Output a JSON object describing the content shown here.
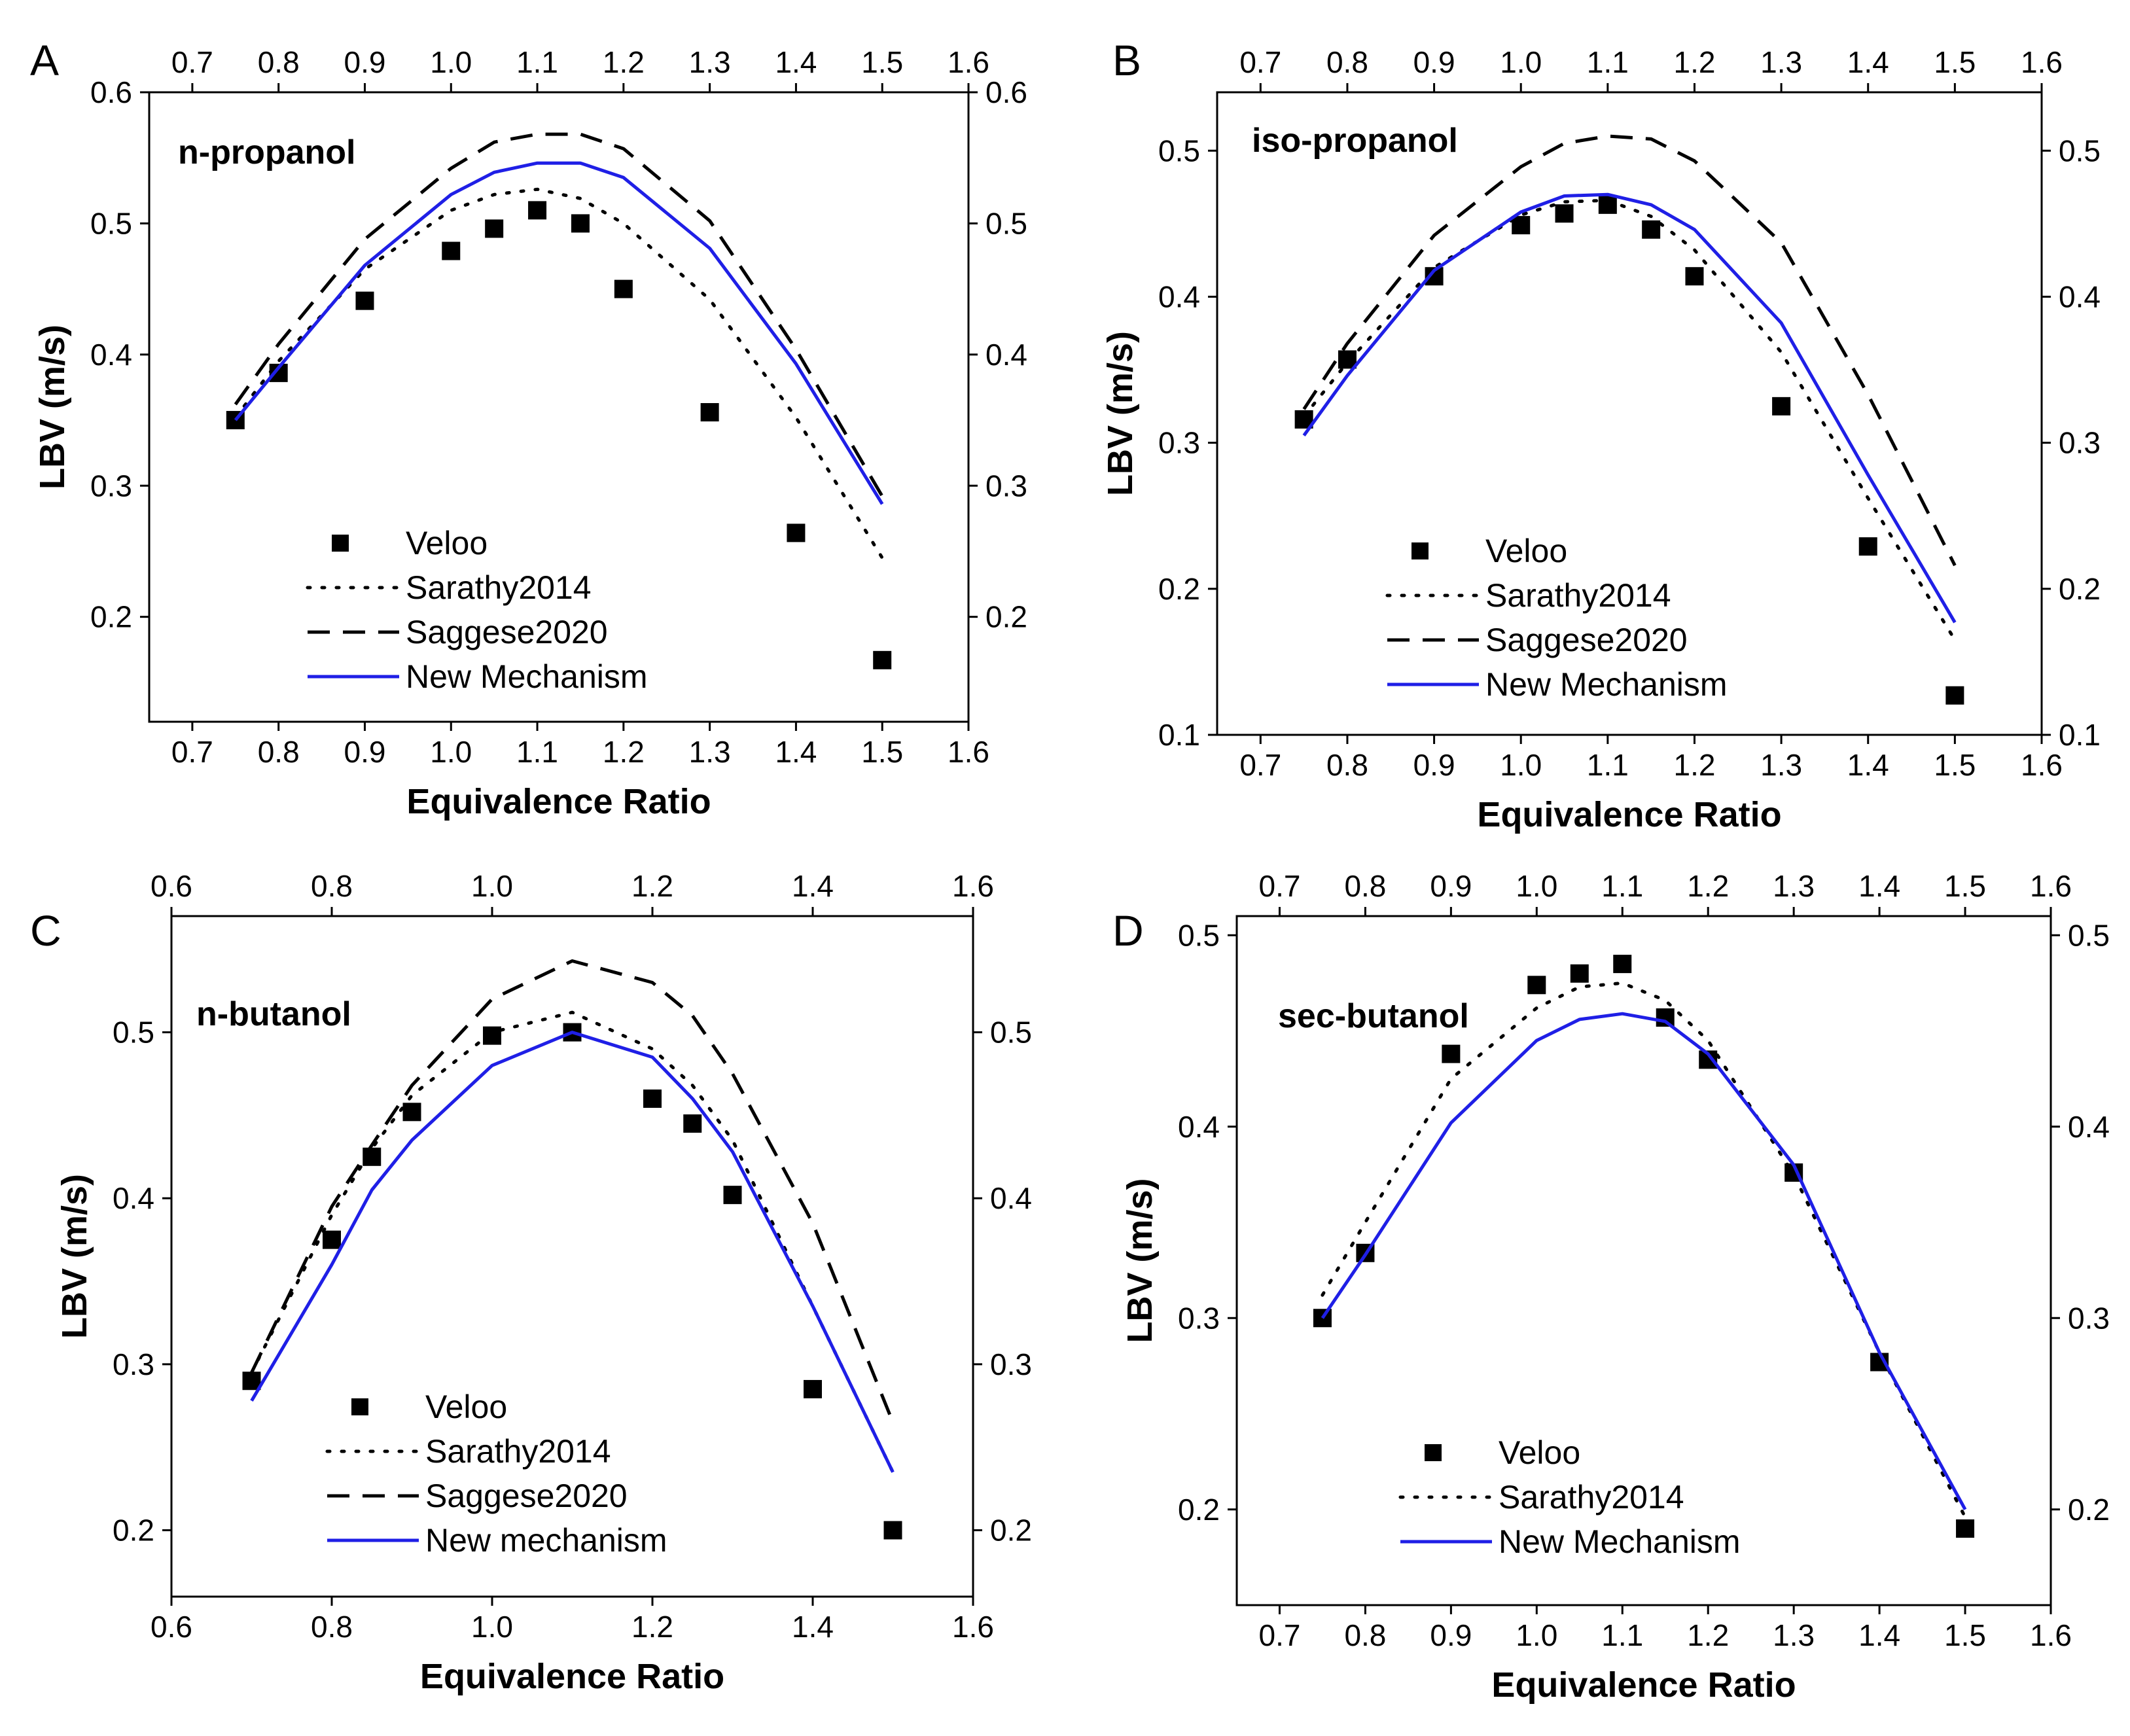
{
  "figure": {
    "colors": {
      "new_mechanism": "#1f1fe6",
      "reference": "#000000",
      "background": "#ffffff"
    },
    "panels": [
      {
        "id": "A",
        "panel_label": "A",
        "fuel": "n-propanol"
      },
      {
        "id": "B",
        "panel_label": "B",
        "fuel": "iso-propanol"
      },
      {
        "id": "C",
        "panel_label": "C",
        "fuel": "n-butanol"
      },
      {
        "id": "D",
        "panel_label": "D",
        "fuel": "sec-butanol"
      }
    ]
  },
  "chart_data": [
    {
      "type": "line",
      "panel": "A",
      "title": "n-propanol",
      "xlabel": "Equivalence Ratio",
      "ylabel": "LBV (m/s)",
      "xlim": [
        0.65,
        1.6
      ],
      "ylim": [
        0.12,
        0.6
      ],
      "x_ticks": [
        0.7,
        0.8,
        0.9,
        1.0,
        1.1,
        1.2,
        1.3,
        1.4,
        1.5,
        1.6
      ],
      "x_tick_labels": [
        "0.7",
        "0.8",
        "0.9",
        "1.0",
        "1.1",
        "1.2",
        "1.3",
        "1.4",
        "1.5",
        "1.6"
      ],
      "y_ticks": [
        0.2,
        0.3,
        0.4,
        0.5,
        0.6
      ],
      "y_tick_labels": [
        "0.2",
        "0.3",
        "0.4",
        "0.5",
        "0.6"
      ],
      "legend_position": "bottom-left",
      "series": [
        {
          "name": "Veloo",
          "style": "markers",
          "x": [
            0.75,
            0.8,
            0.9,
            1.0,
            1.05,
            1.1,
            1.15,
            1.2,
            1.3,
            1.4,
            1.5
          ],
          "y": [
            0.35,
            0.386,
            0.441,
            0.479,
            0.496,
            0.51,
            0.5,
            0.45,
            0.356,
            0.264,
            0.167
          ]
        },
        {
          "name": "Sarathy2014",
          "style": "dotted",
          "x": [
            0.75,
            0.8,
            0.9,
            1.0,
            1.05,
            1.1,
            1.15,
            1.2,
            1.3,
            1.4,
            1.5
          ],
          "y": [
            0.352,
            0.395,
            0.465,
            0.51,
            0.522,
            0.526,
            0.519,
            0.5,
            0.442,
            0.352,
            0.245
          ]
        },
        {
          "name": "Saggese2020",
          "style": "dashed",
          "x": [
            0.75,
            0.8,
            0.9,
            1.0,
            1.05,
            1.1,
            1.15,
            1.2,
            1.3,
            1.4,
            1.5
          ],
          "y": [
            0.362,
            0.408,
            0.488,
            0.542,
            0.562,
            0.568,
            0.568,
            0.557,
            0.502,
            0.404,
            0.292
          ]
        },
        {
          "name": "New Mechanism",
          "style": "solid",
          "x": [
            0.75,
            0.8,
            0.9,
            1.0,
            1.05,
            1.1,
            1.15,
            1.2,
            1.3,
            1.4,
            1.5
          ],
          "y": [
            0.35,
            0.39,
            0.468,
            0.522,
            0.539,
            0.546,
            0.546,
            0.535,
            0.481,
            0.393,
            0.286
          ]
        }
      ]
    },
    {
      "type": "line",
      "panel": "B",
      "title": "iso-propanol",
      "xlabel": "Equivalence Ratio",
      "ylabel": "LBV (m/s)",
      "xlim": [
        0.65,
        1.6
      ],
      "ylim": [
        0.1,
        0.54
      ],
      "x_ticks": [
        0.7,
        0.8,
        0.9,
        1.0,
        1.1,
        1.2,
        1.3,
        1.4,
        1.5,
        1.6
      ],
      "x_tick_labels": [
        "0.7",
        "0.8",
        "0.9",
        "1.0",
        "1.1",
        "1.2",
        "1.3",
        "1.4",
        "1.5",
        "1.6"
      ],
      "y_ticks": [
        0.1,
        0.2,
        0.3,
        0.4,
        0.5
      ],
      "y_tick_labels": [
        "0.1",
        "0.2",
        "0.3",
        "0.4",
        "0.5"
      ],
      "legend_position": "bottom-left",
      "series": [
        {
          "name": "Veloo",
          "style": "markers",
          "x": [
            0.75,
            0.8,
            0.9,
            1.0,
            1.05,
            1.1,
            1.15,
            1.2,
            1.3,
            1.4,
            1.5
          ],
          "y": [
            0.316,
            0.357,
            0.414,
            0.449,
            0.457,
            0.463,
            0.446,
            0.414,
            0.325,
            0.229,
            0.127
          ]
        },
        {
          "name": "Sarathy2014",
          "style": "dotted",
          "x": [
            0.75,
            0.8,
            0.9,
            1.0,
            1.05,
            1.1,
            1.15,
            1.2,
            1.3,
            1.4,
            1.5
          ],
          "y": [
            0.318,
            0.355,
            0.42,
            0.456,
            0.465,
            0.466,
            0.455,
            0.432,
            0.362,
            0.262,
            0.165
          ]
        },
        {
          "name": "Saggese2020",
          "style": "dashed",
          "x": [
            0.75,
            0.8,
            0.9,
            1.0,
            1.05,
            1.1,
            1.15,
            1.2,
            1.3,
            1.4,
            1.5
          ],
          "y": [
            0.323,
            0.368,
            0.442,
            0.489,
            0.505,
            0.51,
            0.508,
            0.493,
            0.437,
            0.333,
            0.216
          ]
        },
        {
          "name": "New Mechanism",
          "style": "solid",
          "x": [
            0.75,
            0.8,
            0.9,
            1.0,
            1.05,
            1.1,
            1.15,
            1.2,
            1.3,
            1.4,
            1.5
          ],
          "y": [
            0.305,
            0.346,
            0.418,
            0.458,
            0.469,
            0.47,
            0.463,
            0.446,
            0.382,
            0.278,
            0.177
          ]
        }
      ]
    },
    {
      "type": "line",
      "panel": "C",
      "title": "n-butanol",
      "xlabel": "Equivalence Ratio",
      "ylabel": "LBV (m/s)",
      "xlim": [
        0.6,
        1.6
      ],
      "ylim": [
        0.16,
        0.57
      ],
      "x_ticks": [
        0.6,
        0.8,
        1.0,
        1.2,
        1.4,
        1.6
      ],
      "x_tick_labels": [
        "0.6",
        "0.8",
        "1.0",
        "1.2",
        "1.4",
        "1.6"
      ],
      "y_ticks": [
        0.2,
        0.3,
        0.4,
        0.5
      ],
      "y_tick_labels": [
        "0.2",
        "0.3",
        "0.4",
        "0.5"
      ],
      "legend_position": "bottom-left",
      "series": [
        {
          "name": "Veloo",
          "style": "markers",
          "x": [
            0.7,
            0.8,
            0.85,
            0.9,
            1.0,
            1.1,
            1.2,
            1.25,
            1.3,
            1.4,
            1.5
          ],
          "y": [
            0.29,
            0.375,
            0.425,
            0.452,
            0.498,
            0.5,
            0.46,
            0.445,
            0.402,
            0.285,
            0.2
          ]
        },
        {
          "name": "Sarathy2014",
          "style": "dotted",
          "x": [
            0.7,
            0.8,
            0.85,
            0.9,
            1.0,
            1.1,
            1.2,
            1.25,
            1.3,
            1.4,
            1.5
          ],
          "y": [
            0.295,
            0.39,
            0.43,
            0.462,
            0.5,
            0.512,
            0.49,
            0.468,
            0.435,
            0.335,
            0.235
          ]
        },
        {
          "name": "Saggese2020",
          "style": "dashed",
          "x": [
            0.7,
            0.8,
            0.85,
            0.9,
            1.0,
            1.1,
            1.2,
            1.25,
            1.3,
            1.4,
            1.5
          ],
          "y": [
            0.295,
            0.395,
            0.432,
            0.468,
            0.52,
            0.543,
            0.53,
            0.51,
            0.475,
            0.385,
            0.265
          ]
        },
        {
          "name": "New mechanism",
          "style": "solid",
          "x": [
            0.7,
            0.8,
            0.85,
            0.9,
            1.0,
            1.1,
            1.2,
            1.25,
            1.3,
            1.4,
            1.5
          ],
          "y": [
            0.278,
            0.36,
            0.405,
            0.435,
            0.48,
            0.5,
            0.485,
            0.46,
            0.428,
            0.335,
            0.235
          ]
        }
      ]
    },
    {
      "type": "line",
      "panel": "D",
      "title": "sec-butanol",
      "xlabel": "Equivalence Ratio",
      "ylabel": "LBV (m/s)",
      "xlim": [
        0.65,
        1.6
      ],
      "ylim": [
        0.15,
        0.51
      ],
      "x_ticks": [
        0.7,
        0.8,
        0.9,
        1.0,
        1.1,
        1.2,
        1.3,
        1.4,
        1.5,
        1.6
      ],
      "x_tick_labels": [
        "0.7",
        "0.8",
        "0.9",
        "1.0",
        "1.1",
        "1.2",
        "1.3",
        "1.4",
        "1.5",
        "1.6"
      ],
      "y_ticks": [
        0.2,
        0.3,
        0.4,
        0.5
      ],
      "y_tick_labels": [
        "0.2",
        "0.3",
        "0.4",
        "0.5"
      ],
      "legend_position": "bottom-left",
      "series": [
        {
          "name": "Veloo",
          "style": "markers",
          "x": [
            0.75,
            0.8,
            0.9,
            1.0,
            1.05,
            1.1,
            1.15,
            1.2,
            1.3,
            1.4,
            1.5
          ],
          "y": [
            0.3,
            0.334,
            0.438,
            0.474,
            0.48,
            0.485,
            0.457,
            0.435,
            0.376,
            0.277,
            0.19
          ]
        },
        {
          "name": "Sarathy2014",
          "style": "dotted",
          "x": [
            0.75,
            0.8,
            0.9,
            1.0,
            1.05,
            1.1,
            1.15,
            1.2,
            1.3,
            1.4,
            1.5
          ],
          "y": [
            0.312,
            0.35,
            0.425,
            0.462,
            0.473,
            0.475,
            0.466,
            0.445,
            0.375,
            0.282,
            0.196
          ]
        },
        {
          "name": "New Mechanism",
          "style": "solid",
          "x": [
            0.75,
            0.8,
            0.9,
            1.0,
            1.05,
            1.1,
            1.15,
            1.2,
            1.3,
            1.4,
            1.5
          ],
          "y": [
            0.3,
            0.333,
            0.402,
            0.445,
            0.456,
            0.459,
            0.455,
            0.438,
            0.38,
            0.282,
            0.2
          ]
        }
      ]
    }
  ]
}
